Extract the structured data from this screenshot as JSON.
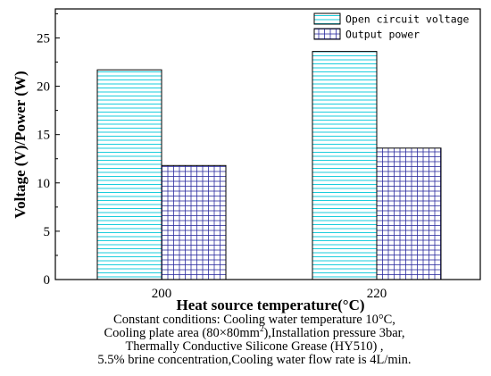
{
  "chart_data": {
    "type": "bar",
    "xlabel": "Heat source temperature(°C)",
    "ylabel": "Voltage (V)/Power (W)",
    "categories": [
      "200",
      "220"
    ],
    "series": [
      {
        "name": "Open circuit voltage",
        "values": [
          21.7,
          23.6
        ],
        "pattern": "horizontal-lines",
        "color": "#00c8d8"
      },
      {
        "name": "Output power",
        "values": [
          11.8,
          13.6
        ],
        "pattern": "grid",
        "color": "#2a2a9e"
      }
    ],
    "ylim": [
      0,
      28
    ],
    "yticks": [
      0,
      5,
      10,
      15,
      20,
      25
    ],
    "grid": false,
    "legend": "top-right"
  },
  "caption": {
    "line1": "Constant conditions: Cooling water temperature 10°C,",
    "line2_pre": "Cooling plate area (80×80mm",
    "line2_sup": "2",
    "line2_post": "),Installation pressure 3bar,",
    "line3": "Thermally Conductive Silicone Grease (HY510) ,",
    "line4": "5.5% brine concentration,Cooling water flow rate is 4L/min."
  }
}
